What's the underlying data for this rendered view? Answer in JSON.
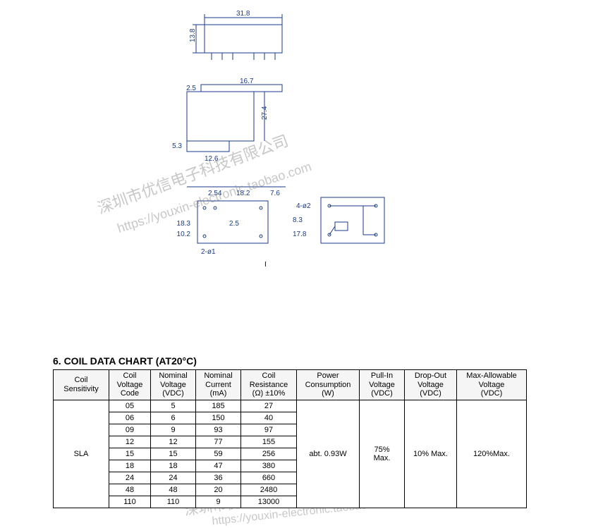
{
  "diagram": {
    "top_width": "31.8",
    "top_height": "13.8",
    "side_top_w": "16.7",
    "side_top_h": "2.5",
    "side_main_h": "27.4",
    "side_bottom_h": "5.3",
    "side_bottom_w": "12.6",
    "foot_pitch": "2.54",
    "foot_span1": "18.2",
    "foot_span2": "7.6",
    "foot_label_a": "2.5",
    "foot_label_b": "18.3",
    "foot_label_c": "10.2",
    "foot_right1": "8.3",
    "foot_right2": "17.8",
    "hole1": "4-ø2",
    "hole2": "2-ø1"
  },
  "watermarks": {
    "cn": "深圳市优信电子科技有限公司",
    "url": "https://youxin-electronic.taobao.com"
  },
  "section_title": "6. COIL DATA CHART (AT20°C)",
  "table": {
    "headers": {
      "sensitivity": "Coil\nSensitivity",
      "code": "Coil\nVoltage\nCode",
      "nvolt": "Nominal\nVoltage\n(VDC)",
      "ncur": "Nominal\nCurrent\n(mA)",
      "res": "Coil\nResistance\n(Ω) ±10%",
      "power": "Power\nConsumption\n(W)",
      "pullin": "Pull-In\nVoltage\n(VDC)",
      "dropout": "Drop-Out\nVoltage\n(VDC)",
      "maxallow": "Max-Allowable\nVoltage\n(VDC)"
    },
    "sensitivity": "SLA",
    "power": "abt. 0.93W",
    "pullin": "75%\nMax.",
    "dropout": "10% Max.",
    "maxallow": "120%Max.",
    "rows": [
      {
        "code": "05",
        "nvolt": "5",
        "ncur": "185",
        "res": "27"
      },
      {
        "code": "06",
        "nvolt": "6",
        "ncur": "150",
        "res": "40"
      },
      {
        "code": "09",
        "nvolt": "9",
        "ncur": "93",
        "res": "97"
      },
      {
        "code": "12",
        "nvolt": "12",
        "ncur": "77",
        "res": "155"
      },
      {
        "code": "15",
        "nvolt": "15",
        "ncur": "59",
        "res": "256"
      },
      {
        "code": "18",
        "nvolt": "18",
        "ncur": "47",
        "res": "380"
      },
      {
        "code": "24",
        "nvolt": "24",
        "ncur": "36",
        "res": "660"
      },
      {
        "code": "48",
        "nvolt": "48",
        "ncur": "20",
        "res": "2480"
      },
      {
        "code": "110",
        "nvolt": "110",
        "ncur": "9",
        "res": "13000"
      }
    ]
  }
}
